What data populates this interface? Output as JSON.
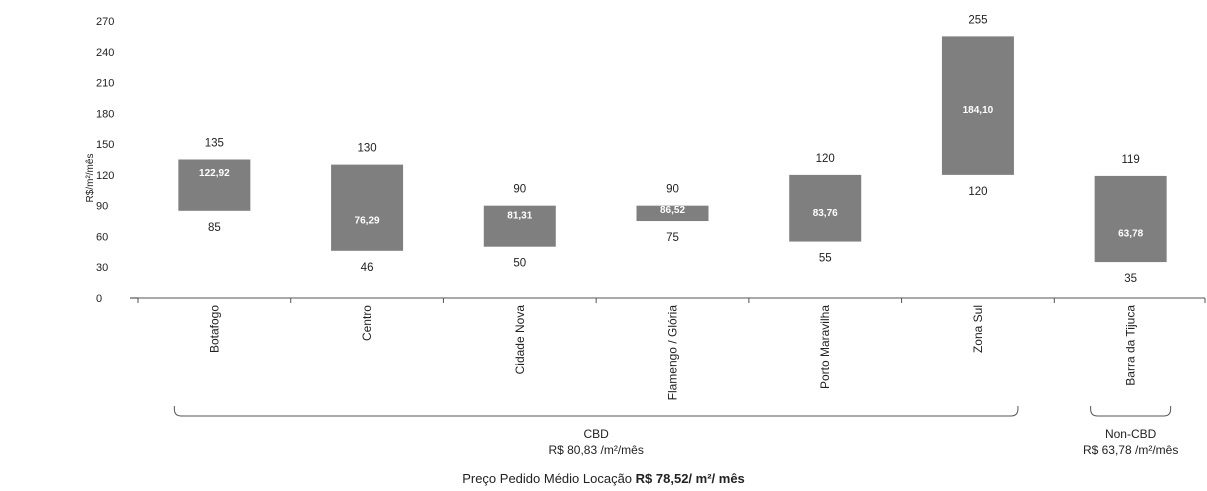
{
  "chart_data": {
    "type": "bar",
    "subtype": "floating-range",
    "ylabel": "R$/m²/mês",
    "ylim": [
      0,
      270
    ],
    "yticks": [
      0,
      30,
      60,
      90,
      120,
      150,
      180,
      210,
      240,
      270
    ],
    "grid": false,
    "bar_color": "#7f7f7f",
    "categories": [
      "Botafogo",
      "Centro",
      "Cidade Nova",
      "Flamengo / Glória",
      "Porto Maravilha",
      "Zona Sul",
      "Barra da Tijuca"
    ],
    "max": [
      135,
      130,
      90,
      90,
      120,
      255,
      119
    ],
    "min": [
      85,
      46,
      50,
      75,
      55,
      120,
      35
    ],
    "average": [
      122.92,
      76.29,
      81.31,
      86.52,
      83.76,
      184.1,
      63.78
    ],
    "max_labels": [
      "135",
      "130",
      "90",
      "90",
      "120",
      "255",
      "119"
    ],
    "min_labels": [
      "85",
      "46",
      "50",
      "75",
      "55",
      "120",
      "35"
    ],
    "average_labels": [
      "122,92",
      "76,29",
      "81,31",
      "86,52",
      "83,76",
      "184,10",
      "63,78"
    ],
    "groups": [
      {
        "title": "CBD",
        "subtitle": "R$ 80,83 /m²/mês",
        "from": 0,
        "to": 5
      },
      {
        "title": "Non-CBD",
        "subtitle": "R$ 63,78 /m²/mês",
        "from": 6,
        "to": 6
      }
    ],
    "footer_prefix": "Preço Pedido Médio Locação ",
    "footer_value": "R$ 78,52/ m²/ mês"
  }
}
